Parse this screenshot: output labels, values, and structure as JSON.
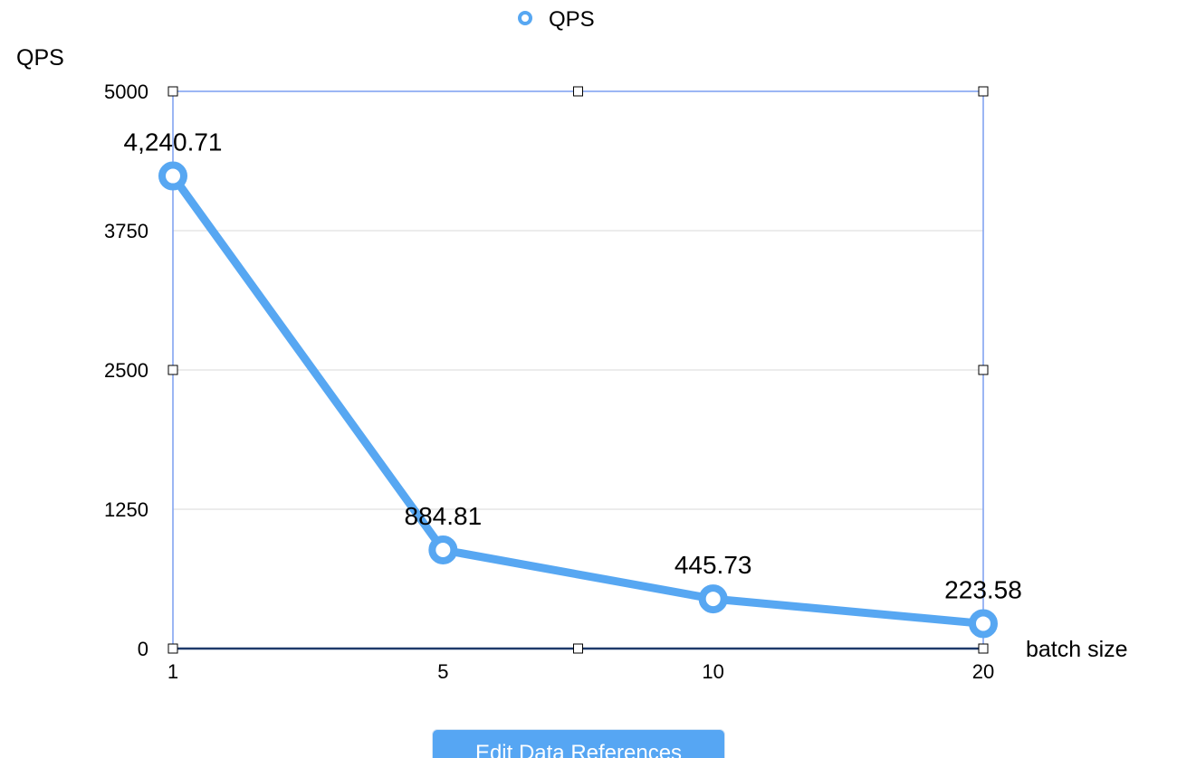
{
  "chart_data": {
    "type": "line",
    "title": "",
    "categories": [
      "1",
      "5",
      "10",
      "20"
    ],
    "series": [
      {
        "name": "QPS",
        "values": [
          4240.71,
          884.81,
          445.73,
          223.58
        ],
        "labels": [
          "4,240.71",
          "884.81",
          "445.73",
          "223.58"
        ]
      }
    ],
    "xlabel": "batch size",
    "ylabel": "QPS",
    "ylim": [
      0,
      5000
    ],
    "yticks": [
      "0",
      "1250",
      "2500",
      "3750",
      "5000"
    ],
    "grid": true,
    "legend": "top-center",
    "colors": {
      "series": "#57a7f2",
      "grid": "#d9d9d9",
      "selection": "#7c9ef0",
      "baseline": "#1e3a6b"
    }
  },
  "toolbar": {
    "edit_button_label": "Edit Data References"
  }
}
